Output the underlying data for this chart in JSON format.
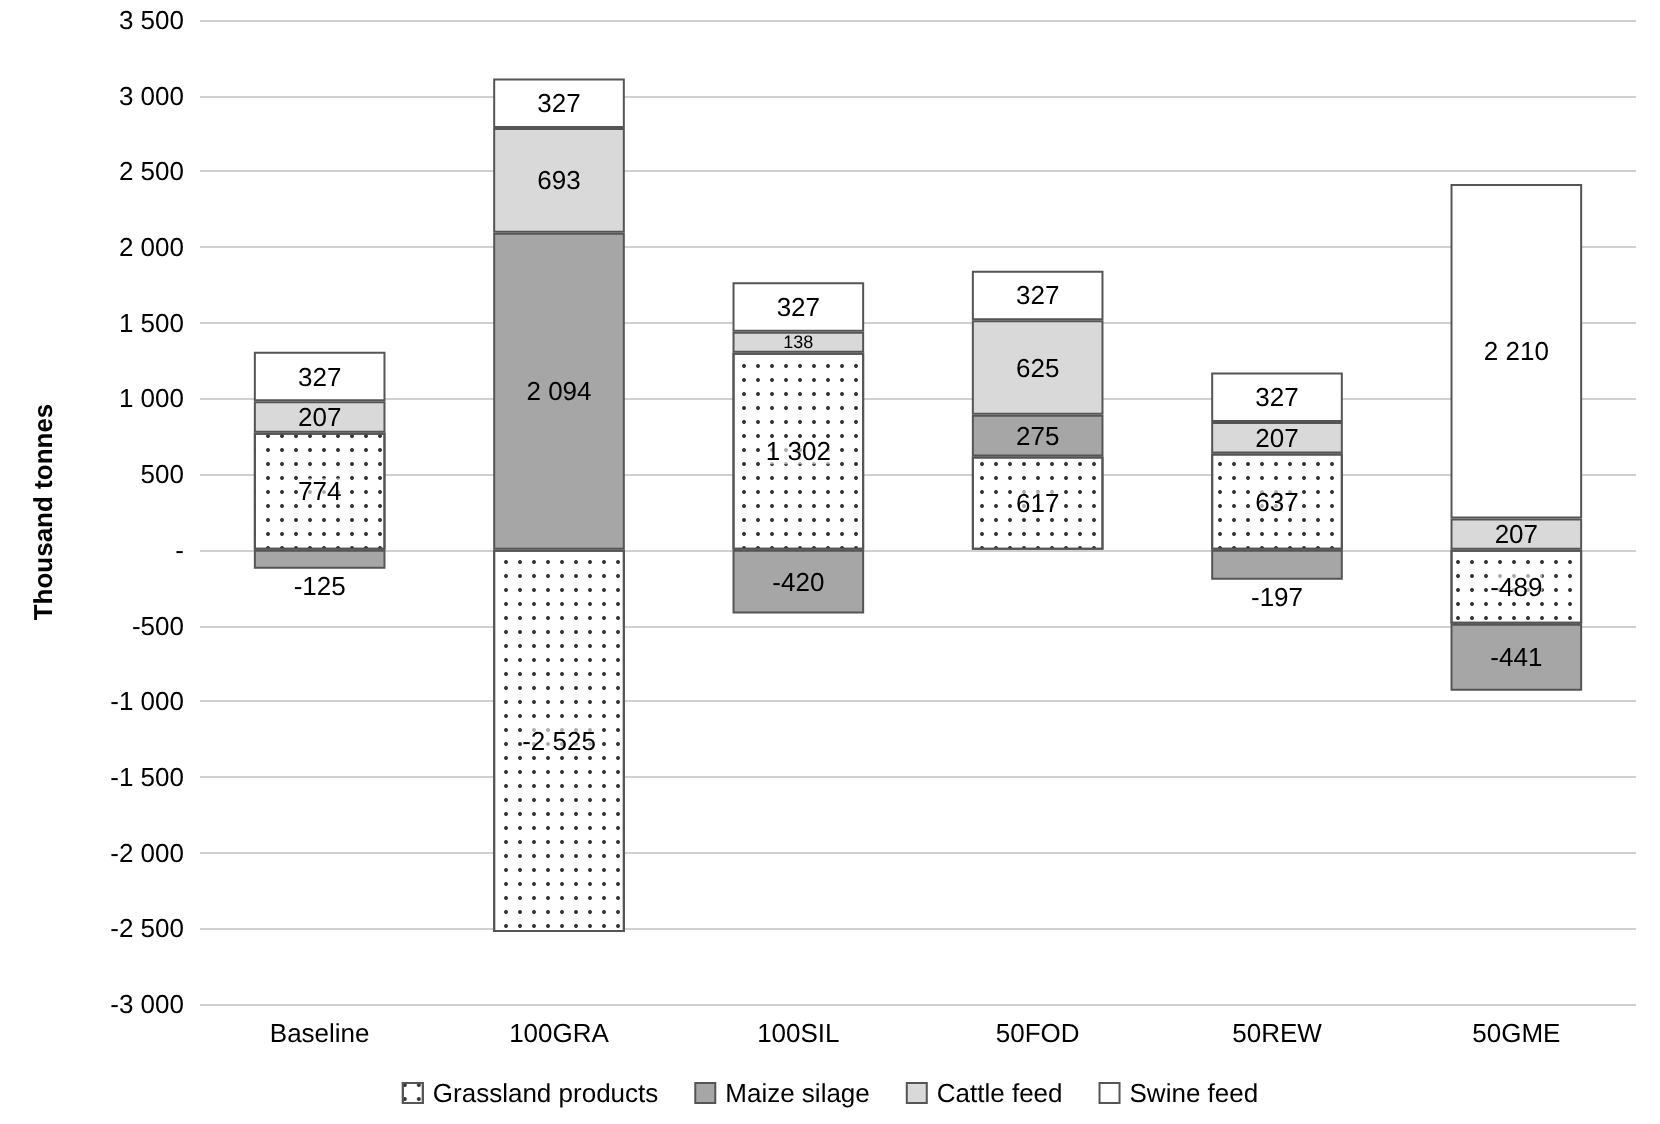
{
  "chart_data": {
    "type": "bar",
    "stacked": true,
    "ylabel": "Thousand tonnes",
    "categories": [
      "Baseline",
      "100GRA",
      "100SIL",
      "50FOD",
      "50REW",
      "50GME"
    ],
    "series": [
      {
        "name": "Grassland products",
        "color": "#ffffff",
        "values": [
          774,
          -2525,
          1302,
          617,
          637,
          -489
        ],
        "value_labels": [
          "774",
          "-2 525",
          "1 302",
          "617",
          "637",
          "-489"
        ]
      },
      {
        "name": "Maize silage",
        "color": "#a6a6a6",
        "values": [
          -125,
          2094,
          -420,
          275,
          -197,
          -441
        ],
        "value_labels": [
          "-125",
          "2 094",
          "-420",
          "275",
          "-197",
          "-441"
        ]
      },
      {
        "name": "Cattle feed",
        "color": "#d9d9d9",
        "values": [
          207,
          693,
          138,
          625,
          207,
          207
        ],
        "value_labels": [
          "207",
          "693",
          "138",
          "625",
          "207",
          "207"
        ]
      },
      {
        "name": "Swine feed",
        "color": "#ffffff",
        "values": [
          327,
          327,
          327,
          327,
          327,
          2210
        ],
        "value_labels": [
          "327",
          "327",
          "327",
          "327",
          "327",
          "2 210"
        ]
      }
    ],
    "ylim": [
      -3000,
      3500
    ],
    "yticks": [
      {
        "value": -3000,
        "label": "-3 000"
      },
      {
        "value": -2500,
        "label": "-2 500"
      },
      {
        "value": -2000,
        "label": "-2 000"
      },
      {
        "value": -1500,
        "label": "-1 500"
      },
      {
        "value": -1000,
        "label": "-1 000"
      },
      {
        "value": -500,
        "label": "-500"
      },
      {
        "value": 0,
        "label": "-"
      },
      {
        "value": 500,
        "label": "500"
      },
      {
        "value": 1000,
        "label": "1 000"
      },
      {
        "value": 1500,
        "label": "1 500"
      },
      {
        "value": 2000,
        "label": "2 000"
      },
      {
        "value": 2500,
        "label": "2 500"
      },
      {
        "value": 3000,
        "label": "3 000"
      },
      {
        "value": 3500,
        "label": "3 500"
      }
    ],
    "grid": "y",
    "legend": "bottom"
  }
}
